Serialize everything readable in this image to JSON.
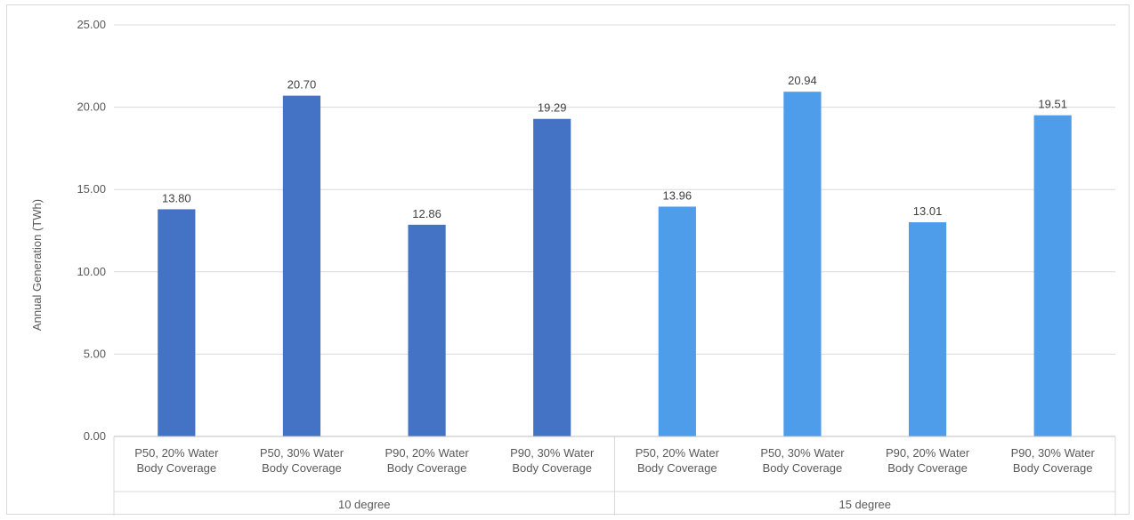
{
  "chart_data": {
    "type": "bar",
    "title": "",
    "ylabel": "Annual Generation (TWh)",
    "ylim": [
      0,
      25
    ],
    "yticks": [
      "0.00",
      "5.00",
      "10.00",
      "15.00",
      "20.00",
      "25.00"
    ],
    "grid": true,
    "groups": [
      {
        "name": "10 degree",
        "color": "#4472c4",
        "categories": [
          [
            "P50, 20% Water",
            "Body Coverage"
          ],
          [
            "P50, 30% Water",
            "Body Coverage"
          ],
          [
            "P90, 20% Water",
            "Body Coverage"
          ],
          [
            "P90, 30% Water",
            "Body Coverage"
          ]
        ],
        "values": [
          13.8,
          20.7,
          12.86,
          19.29
        ],
        "labels": [
          "13.80",
          "20.70",
          "12.86",
          "19.29"
        ]
      },
      {
        "name": "15 degree",
        "color": "#4e9deb",
        "categories": [
          [
            "P50, 20% Water",
            "Body Coverage"
          ],
          [
            "P50, 30% Water",
            "Body Coverage"
          ],
          [
            "P90, 20% Water",
            "Body Coverage"
          ],
          [
            "P90, 30% Water",
            "Body Coverage"
          ]
        ],
        "values": [
          13.96,
          20.94,
          13.01,
          19.51
        ],
        "labels": [
          "13.96",
          "20.94",
          "13.01",
          "19.51"
        ]
      }
    ]
  }
}
